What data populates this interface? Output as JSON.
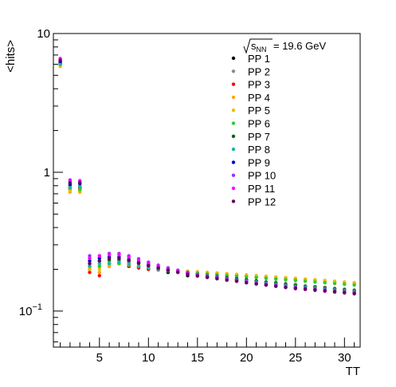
{
  "chart_data": {
    "type": "scatter",
    "xlabel": "TT",
    "ylabel": "<hits>",
    "xlim": [
      0.3,
      31.6
    ],
    "ylim": [
      0.055,
      10
    ],
    "log_y": true,
    "grid": false,
    "legend_placement": "top-right",
    "legend_header": "= 19.6 GeV",
    "x_ticks": [
      {
        "value": 5,
        "label": "5"
      },
      {
        "value": 10,
        "label": "10"
      },
      {
        "value": 15,
        "label": "15"
      },
      {
        "value": 20,
        "label": "20"
      },
      {
        "value": 25,
        "label": "25"
      },
      {
        "value": 30,
        "label": "30"
      }
    ],
    "y_ticks": [
      {
        "value": 10,
        "label": "10"
      },
      {
        "value": 1,
        "label": "1"
      },
      {
        "value": 0.1,
        "label": "10",
        "sup": "−1"
      }
    ],
    "x": [
      1,
      2,
      3,
      4,
      5,
      6,
      7,
      8,
      9,
      10,
      11,
      12,
      13,
      14,
      15,
      16,
      17,
      18,
      19,
      20,
      21,
      22,
      23,
      24,
      25,
      26,
      27,
      28,
      29,
      30,
      31
    ],
    "series": [
      {
        "name": "PP 1",
        "color": "#000000",
        "values": [
          6.2,
          0.78,
          0.78,
          0.2,
          0.21,
          0.22,
          0.22,
          0.21,
          0.205,
          0.2,
          0.2,
          0.19,
          0.19,
          0.18,
          0.18,
          0.175,
          0.175,
          0.17,
          0.17,
          0.165,
          0.165,
          0.16,
          0.16,
          0.155,
          0.155,
          0.15,
          0.15,
          0.148,
          0.145,
          0.143,
          0.14
        ]
      },
      {
        "name": "PP 2",
        "color": "#8c8c8c",
        "values": [
          6.0,
          0.75,
          0.76,
          0.21,
          0.22,
          0.23,
          0.23,
          0.22,
          0.21,
          0.205,
          0.2,
          0.195,
          0.19,
          0.185,
          0.18,
          0.178,
          0.175,
          0.172,
          0.17,
          0.168,
          0.165,
          0.162,
          0.16,
          0.158,
          0.155,
          0.152,
          0.15,
          0.148,
          0.146,
          0.144,
          0.142
        ]
      },
      {
        "name": "PP 3",
        "color": "#ff0000",
        "values": [
          6.1,
          0.76,
          0.77,
          0.19,
          0.18,
          0.21,
          0.22,
          0.21,
          0.205,
          0.2,
          0.198,
          0.195,
          0.192,
          0.19,
          0.188,
          0.186,
          0.185,
          0.183,
          0.18,
          0.178,
          0.176,
          0.175,
          0.173,
          0.172,
          0.17,
          0.168,
          0.166,
          0.164,
          0.162,
          0.16,
          0.158
        ]
      },
      {
        "name": "PP 4",
        "color": "#ffa500",
        "values": [
          5.8,
          0.72,
          0.72,
          0.2,
          0.19,
          0.21,
          0.22,
          0.215,
          0.21,
          0.205,
          0.2,
          0.198,
          0.196,
          0.194,
          0.192,
          0.19,
          0.188,
          0.186,
          0.184,
          0.182,
          0.18,
          0.178,
          0.176,
          0.174,
          0.172,
          0.17,
          0.168,
          0.166,
          0.164,
          0.162,
          0.16
        ]
      },
      {
        "name": "PP 5",
        "color": "#e6c200",
        "values": [
          5.9,
          0.74,
          0.74,
          0.2,
          0.2,
          0.215,
          0.225,
          0.22,
          0.212,
          0.206,
          0.2,
          0.197,
          0.195,
          0.193,
          0.19,
          0.188,
          0.186,
          0.184,
          0.182,
          0.18,
          0.178,
          0.176,
          0.174,
          0.172,
          0.17,
          0.168,
          0.166,
          0.164,
          0.162,
          0.16,
          0.158
        ]
      },
      {
        "name": "PP 6",
        "color": "#2ecc2e",
        "values": [
          6.0,
          0.77,
          0.75,
          0.21,
          0.21,
          0.22,
          0.22,
          0.215,
          0.21,
          0.205,
          0.2,
          0.196,
          0.193,
          0.19,
          0.187,
          0.185,
          0.183,
          0.18,
          0.178,
          0.176,
          0.174,
          0.172,
          0.17,
          0.168,
          0.166,
          0.164,
          0.162,
          0.16,
          0.158,
          0.156,
          0.154
        ]
      },
      {
        "name": "PP 7",
        "color": "#006400",
        "values": [
          6.1,
          0.8,
          0.8,
          0.22,
          0.23,
          0.235,
          0.235,
          0.228,
          0.22,
          0.212,
          0.205,
          0.198,
          0.193,
          0.188,
          0.183,
          0.18,
          0.177,
          0.174,
          0.171,
          0.168,
          0.165,
          0.162,
          0.159,
          0.156,
          0.153,
          0.15,
          0.148,
          0.146,
          0.144,
          0.142,
          0.14
        ]
      },
      {
        "name": "PP 8",
        "color": "#20b2aa",
        "values": [
          6.0,
          0.78,
          0.79,
          0.21,
          0.22,
          0.22,
          0.225,
          0.22,
          0.21,
          0.205,
          0.2,
          0.195,
          0.19,
          0.185,
          0.18,
          0.177,
          0.174,
          0.171,
          0.168,
          0.165,
          0.162,
          0.159,
          0.156,
          0.153,
          0.15,
          0.148,
          0.146,
          0.144,
          0.142,
          0.14,
          0.138
        ]
      },
      {
        "name": "PP 9",
        "color": "#0000cc",
        "values": [
          6.3,
          0.82,
          0.83,
          0.23,
          0.24,
          0.245,
          0.245,
          0.236,
          0.225,
          0.216,
          0.208,
          0.2,
          0.194,
          0.188,
          0.182,
          0.178,
          0.174,
          0.17,
          0.166,
          0.162,
          0.158,
          0.155,
          0.152,
          0.149,
          0.146,
          0.144,
          0.142,
          0.14,
          0.138,
          0.136,
          0.134
        ]
      },
      {
        "name": "PP 10",
        "color": "#9b30ff",
        "values": [
          6.5,
          0.88,
          0.87,
          0.25,
          0.25,
          0.26,
          0.26,
          0.25,
          0.238,
          0.225,
          0.214,
          0.205,
          0.197,
          0.19,
          0.184,
          0.179,
          0.175,
          0.171,
          0.167,
          0.163,
          0.16,
          0.157,
          0.154,
          0.151,
          0.148,
          0.146,
          0.144,
          0.142,
          0.14,
          0.138,
          0.136
        ]
      },
      {
        "name": "PP 11",
        "color": "#ff00ff",
        "values": [
          6.6,
          0.86,
          0.86,
          0.24,
          0.25,
          0.255,
          0.255,
          0.245,
          0.232,
          0.22,
          0.21,
          0.2,
          0.193,
          0.186,
          0.18,
          0.176,
          0.172,
          0.168,
          0.164,
          0.16,
          0.157,
          0.154,
          0.151,
          0.148,
          0.145,
          0.143,
          0.141,
          0.139,
          0.137,
          0.135,
          0.133
        ]
      },
      {
        "name": "PP 12",
        "color": "#5c0a5c",
        "values": [
          6.4,
          0.84,
          0.84,
          0.22,
          0.23,
          0.24,
          0.24,
          0.232,
          0.222,
          0.212,
          0.204,
          0.197,
          0.19,
          0.184,
          0.179,
          0.175,
          0.171,
          0.167,
          0.164,
          0.16,
          0.157,
          0.154,
          0.151,
          0.148,
          0.146,
          0.144,
          0.142,
          0.14,
          0.138,
          0.136,
          0.134
        ]
      }
    ]
  }
}
